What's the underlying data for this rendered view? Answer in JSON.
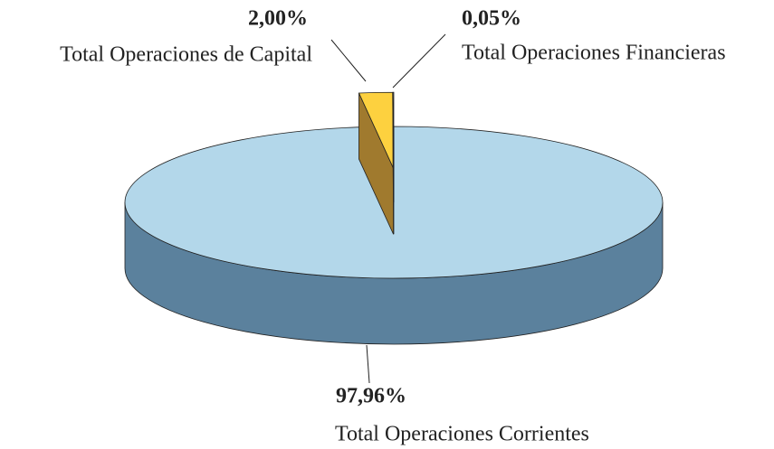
{
  "chart_data": {
    "type": "pie",
    "categories": [
      "Total Operaciones Corrientes",
      "Total Operaciones de Capital",
      "Total Operaciones Financieras"
    ],
    "values": [
      97.96,
      2.0,
      0.05
    ],
    "value_labels": [
      "97,96%",
      "2,00%",
      "0,05%"
    ],
    "colors": [
      "#b3d7ea",
      "#fdd13f",
      "#ffffff"
    ],
    "side_colors": [
      "#5b819d",
      "#a07a2e",
      "#d8d8d8"
    ]
  }
}
